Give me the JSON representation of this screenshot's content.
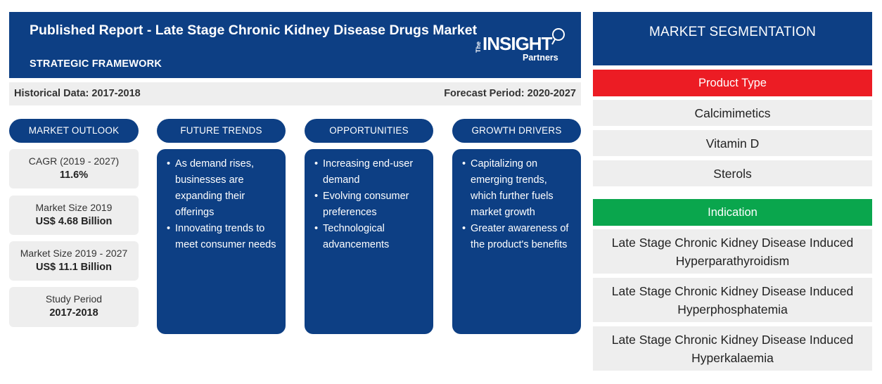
{
  "header": {
    "title": "Published Report - Late Stage Chronic Kidney Disease Drugs Market",
    "subtitle": "STRATEGIC FRAMEWORK",
    "logo": {
      "the": "The",
      "brand": "INSIGHT",
      "partners": "Partners"
    }
  },
  "data_bar": {
    "historical": "Historical Data: 2017-2018",
    "forecast": "Forecast Period: 2020-2027"
  },
  "columns": {
    "outlook": "MARKET OUTLOOK",
    "trends": "FUTURE TRENDS",
    "opportunities": "OPPORTUNITIES",
    "drivers": "GROWTH DRIVERS"
  },
  "outlook": [
    {
      "label": "CAGR (2019 - 2027)",
      "value": "11.6%"
    },
    {
      "label": "Market Size 2019",
      "value": "US$ 4.68 Billion"
    },
    {
      "label": "Market Size 2019 - 2027",
      "value": "US$ 11.1 Billion"
    },
    {
      "label": "Study Period",
      "value": "2017-2018"
    }
  ],
  "trends": [
    "As demand rises, businesses are expanding their offerings",
    "Innovating trends to meet consumer needs"
  ],
  "opportunities": [
    "Increasing end-user demand",
    "Evolving consumer preferences",
    "Technological advancements"
  ],
  "drivers": [
    "Capitalizing on emerging trends, which further fuels market growth",
    "Greater awareness of the product's benefits"
  ],
  "segmentation": {
    "title": "MARKET SEGMENTATION",
    "product_type": {
      "label": "Product Type",
      "color": "#ec1c24",
      "items": [
        "Calcimimetics",
        "Vitamin D",
        "Sterols"
      ]
    },
    "indication": {
      "label": "Indication",
      "color": "#0aa64d",
      "items": [
        "Late Stage Chronic Kidney Disease Induced Hyperparathyroidism",
        "Late Stage Chronic Kidney Disease Induced Hyperphosphatemia",
        "Late Stage Chronic Kidney Disease Induced Hyperkalaemia"
      ]
    }
  },
  "colors": {
    "navy": "#0d3f84",
    "panel_gray": "#eeeeee"
  }
}
